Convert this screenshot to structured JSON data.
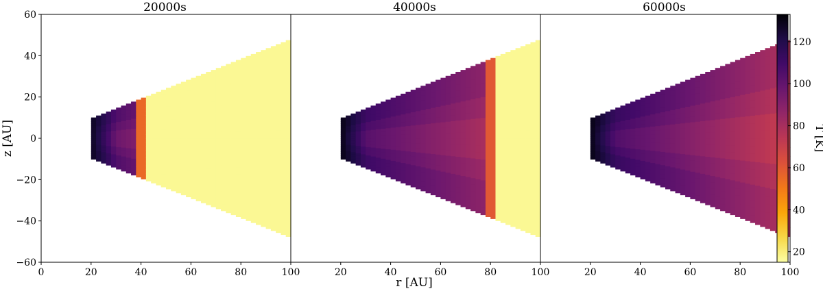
{
  "chart_data": {
    "type": "heatmap",
    "xlabel": "r [AU]",
    "ylabel": "z [AU]",
    "xlim": [
      0,
      100
    ],
    "ylim": [
      -60,
      60
    ],
    "xticks": [
      0,
      20,
      40,
      60,
      80,
      100
    ],
    "yticks": [
      -60,
      -40,
      -20,
      0,
      20,
      40,
      60
    ],
    "domain": {
      "r_inner": 20,
      "r_outer": 100,
      "z_over_r": 0.48
    },
    "colorbar": {
      "label": "T [K]",
      "colormap": "inferno_r",
      "range": [
        15,
        133
      ],
      "ticks": [
        20,
        40,
        60,
        80,
        100,
        120
      ]
    },
    "panels": [
      {
        "title": "20000s",
        "front_r": 40,
        "hot_T": 128,
        "cold_T": 105,
        "warm_T": 92,
        "front_T": 55,
        "ambient_T": 17
      },
      {
        "title": "40000s",
        "front_r": 80,
        "hot_T": 130,
        "cold_T": 108,
        "warm_T": 80,
        "front_T": 60,
        "ambient_T": 17
      },
      {
        "title": "60000s",
        "front_r": 102,
        "hot_T": 130,
        "cold_T": 110,
        "warm_T": 70,
        "front_T": 68,
        "ambient_T": 17
      }
    ]
  }
}
